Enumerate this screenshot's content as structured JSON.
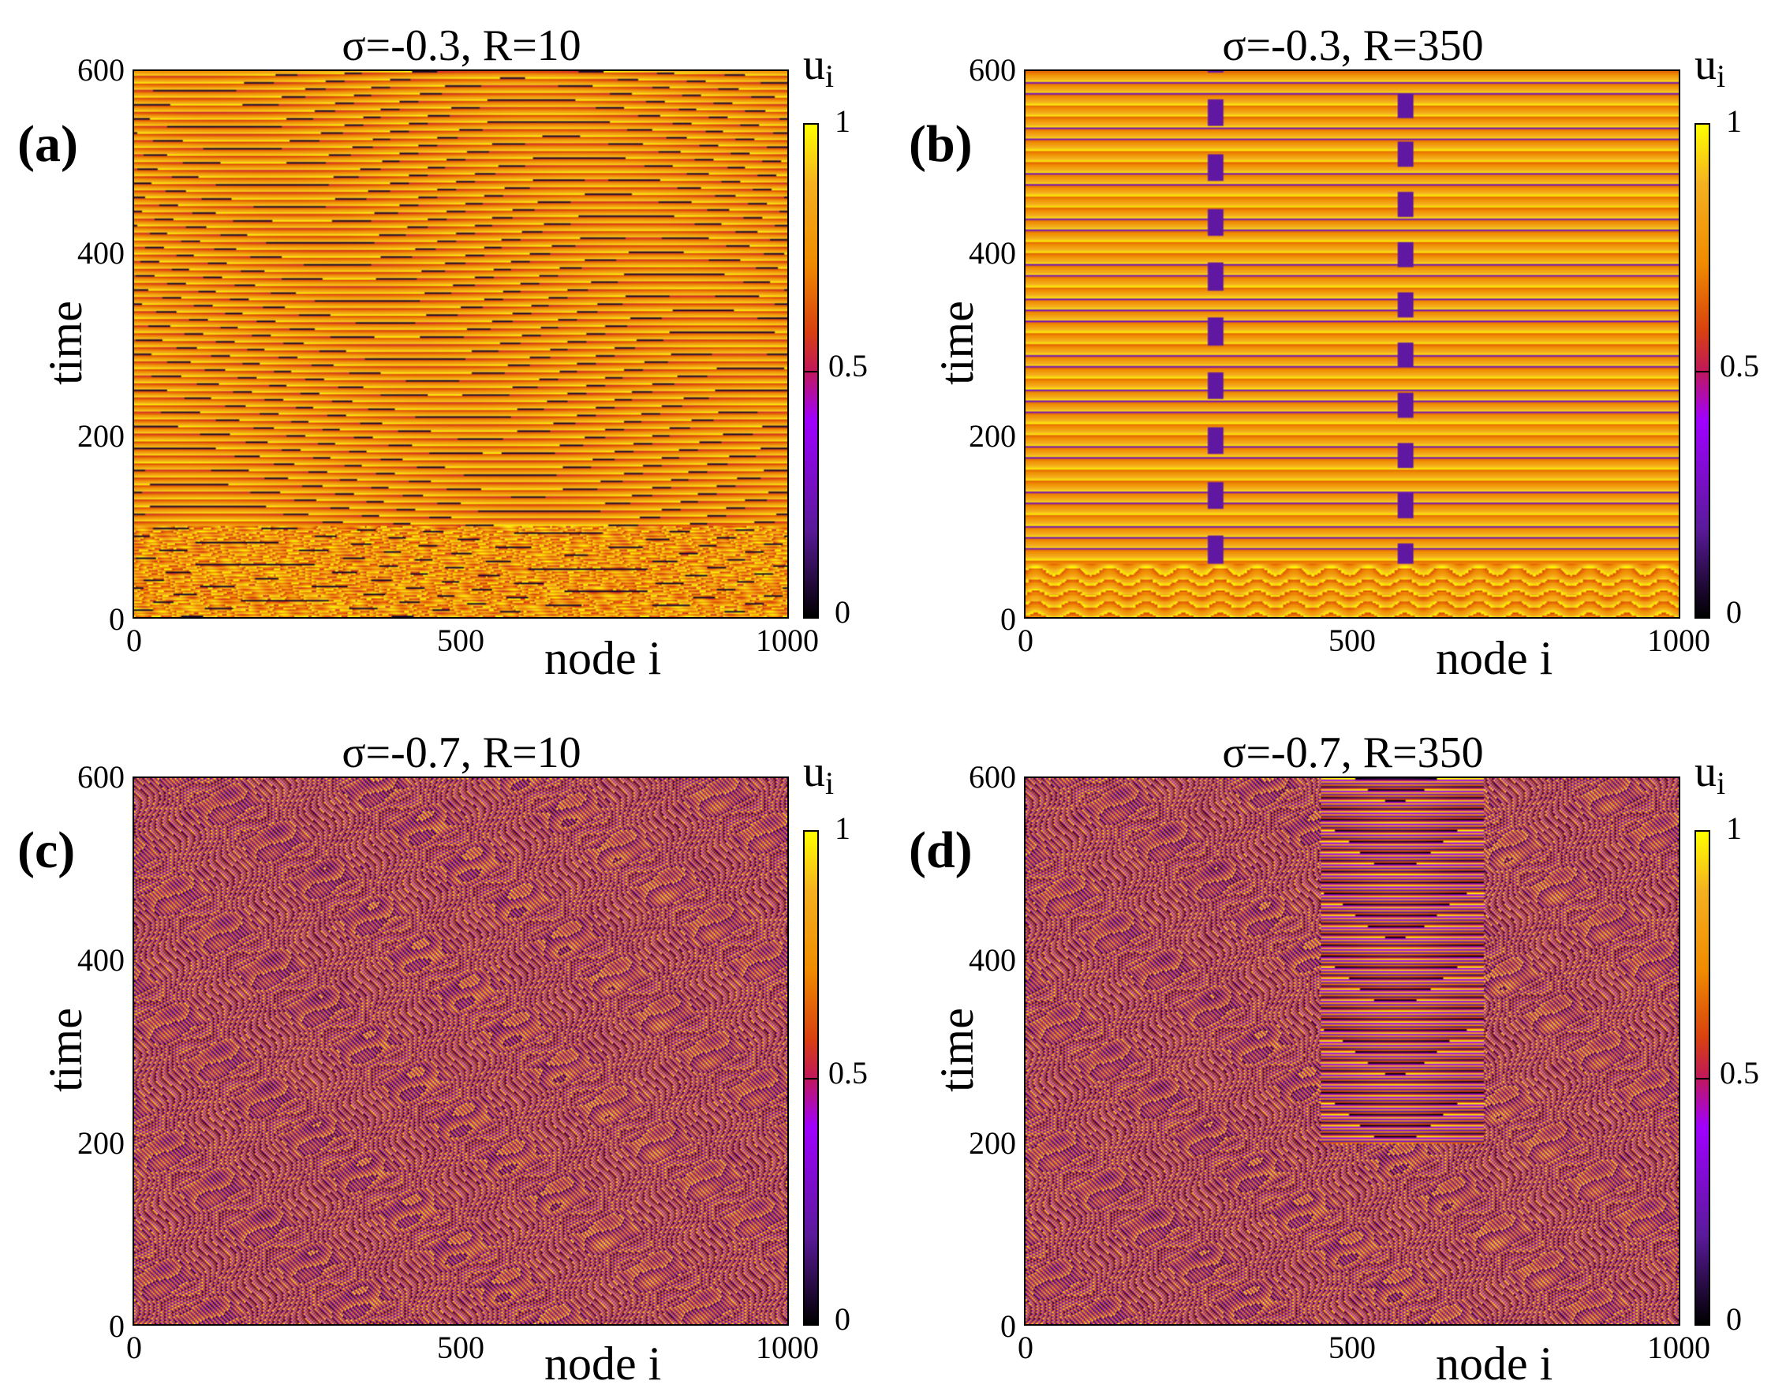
{
  "chart_data": [
    {
      "type": "heatmap",
      "panel_label": "(a)",
      "title": "σ=-0.3, R=10",
      "xlabel": "node i",
      "ylabel": "time",
      "xlim": [
        0,
        1000
      ],
      "ylim": [
        0,
        600
      ],
      "x_ticks": [
        "0",
        "500",
        "1000"
      ],
      "y_ticks": [
        "0",
        "200",
        "400",
        "600"
      ],
      "colorbar": {
        "title": "u",
        "subscript": "i",
        "ticks": [
          "0",
          "0.5",
          "1"
        ],
        "range": [
          0,
          1
        ]
      },
      "colormap": [
        "#000000",
        "#5a1a9a",
        "#a000ff",
        "#c0185a",
        "#d84010",
        "#f08c00",
        "#f4b020",
        "#ffff00"
      ],
      "pattern": "stripes-with-chaotic-start"
    },
    {
      "type": "heatmap",
      "panel_label": "(b)",
      "title": "σ=-0.3, R=350",
      "xlabel": "node i",
      "ylabel": "time",
      "xlim": [
        0,
        1000
      ],
      "ylim": [
        0,
        600
      ],
      "x_ticks": [
        "0",
        "500",
        "1000"
      ],
      "y_ticks": [
        "0",
        "200",
        "400",
        "600"
      ],
      "colorbar": {
        "title": "u",
        "subscript": "i",
        "ticks": [
          "0",
          "0.5",
          "1"
        ],
        "range": [
          0,
          1
        ]
      },
      "colormap": [
        "#000000",
        "#5a1a9a",
        "#a000ff",
        "#c0185a",
        "#d84010",
        "#f08c00",
        "#f4b020",
        "#ffff00"
      ],
      "pattern": "horizontal-stripes"
    },
    {
      "type": "heatmap",
      "panel_label": "(c)",
      "title": "σ=-0.7, R=10",
      "xlabel": "node i",
      "ylabel": "time",
      "xlim": [
        0,
        1000
      ],
      "ylim": [
        0,
        600
      ],
      "x_ticks": [
        "0",
        "500",
        "1000"
      ],
      "y_ticks": [
        "0",
        "200",
        "400",
        "600"
      ],
      "colorbar": {
        "title": "u",
        "subscript": "i",
        "ticks": [
          "0",
          "0.5",
          "1"
        ],
        "range": [
          0,
          1
        ]
      },
      "colormap": [
        "#000000",
        "#5a1a9a",
        "#a000ff",
        "#c0185a",
        "#d84010",
        "#f08c00",
        "#f4b020",
        "#ffff00"
      ],
      "pattern": "chaotic"
    },
    {
      "type": "heatmap",
      "panel_label": "(d)",
      "title": "σ=-0.7, R=350",
      "xlabel": "node i",
      "ylabel": "time",
      "xlim": [
        0,
        1000
      ],
      "ylim": [
        0,
        600
      ],
      "x_ticks": [
        "0",
        "500",
        "1000"
      ],
      "y_ticks": [
        "0",
        "200",
        "400",
        "600"
      ],
      "colorbar": {
        "title": "u",
        "subscript": "i",
        "ticks": [
          "0",
          "0.5",
          "1"
        ],
        "range": [
          0,
          1
        ]
      },
      "colormap": [
        "#000000",
        "#5a1a9a",
        "#a000ff",
        "#c0185a",
        "#d84010",
        "#f08c00",
        "#f4b020",
        "#ffff00"
      ],
      "pattern": "chaotic-with-coherent-center"
    }
  ]
}
